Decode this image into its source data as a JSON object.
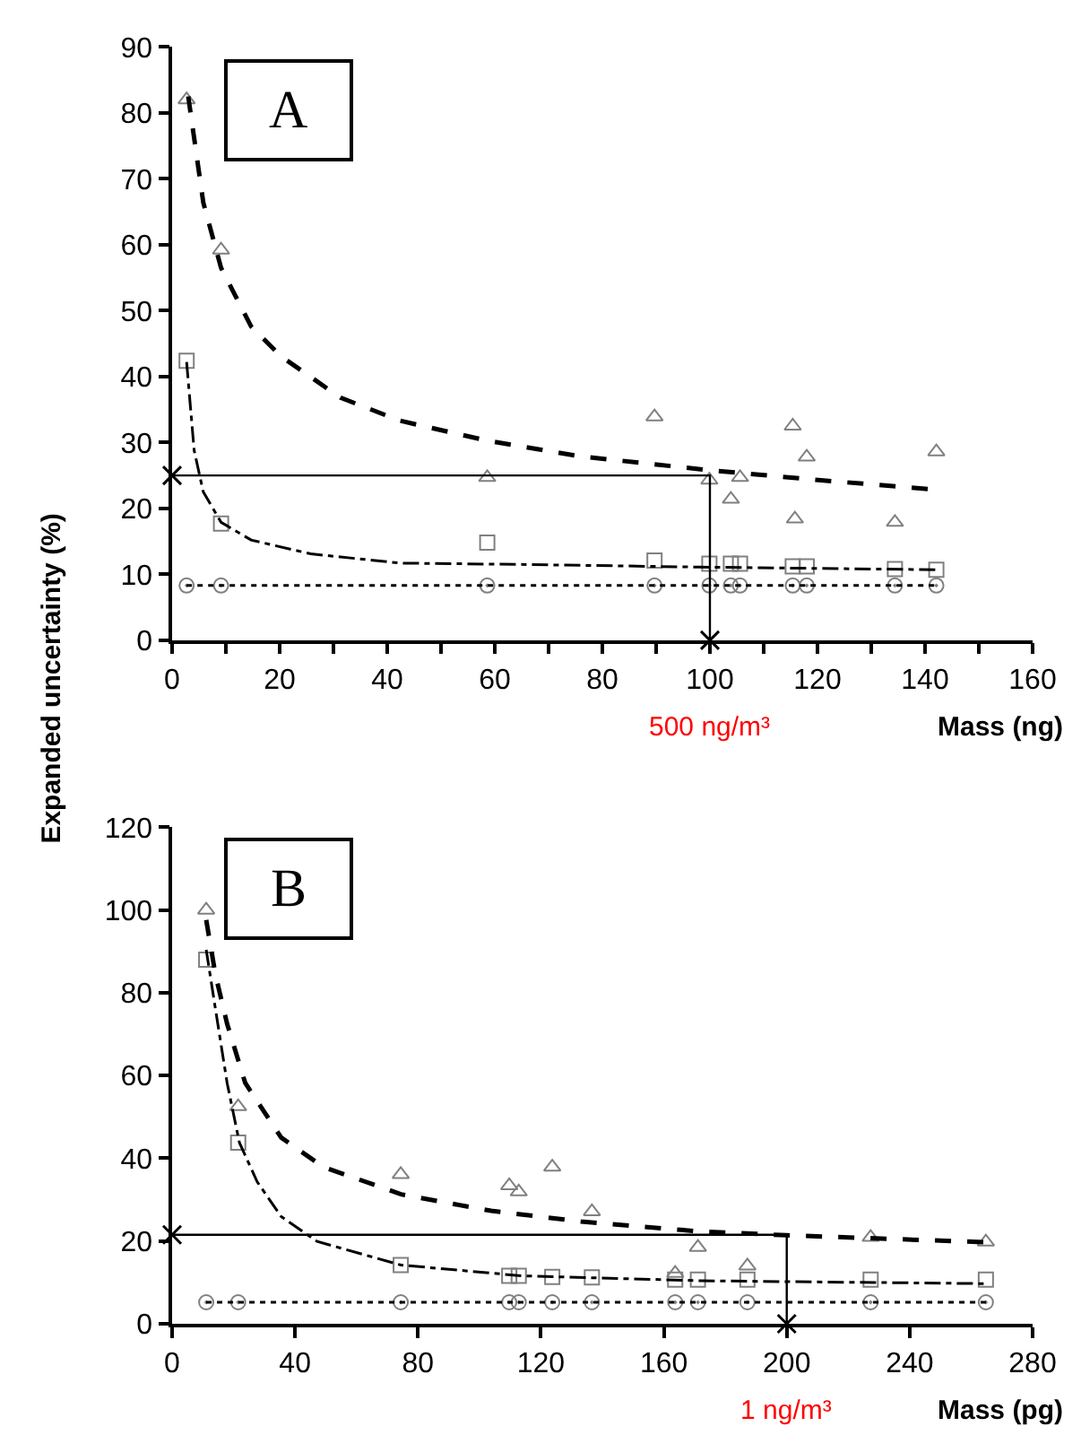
{
  "chart_data": [
    {
      "type": "scatter",
      "ylabel": "Expanded uncertainty (%)",
      "xlabel": "Mass (ng)",
      "xlim": [
        0,
        160
      ],
      "ylim": [
        0,
        90
      ],
      "xticks": [
        0,
        {
          "value": 10,
          "label": null
        },
        20,
        {
          "value": 30,
          "label": null
        },
        40,
        {
          "value": 50,
          "label": null
        },
        60,
        {
          "value": 70,
          "label": null
        },
        80,
        {
          "value": 90,
          "label": null
        },
        100,
        {
          "value": 110,
          "label": null
        },
        120,
        {
          "value": 130,
          "label": null
        },
        140,
        {
          "value": 150,
          "label": null
        },
        160
      ],
      "yticks": [
        0,
        10,
        20,
        30,
        40,
        50,
        60,
        70,
        80,
        90
      ],
      "annotations": [
        "A",
        {
          "text": "500 ng/m³",
          "x": 100,
          "y": 0
        }
      ],
      "series": [
        {
          "type": "scatter",
          "marker": "triangle",
          "color": "#808080",
          "x": [
            2.7,
            9.1,
            58.6,
            89.7,
            99.9,
            103.9,
            105.6,
            115.4,
            115.8,
            118,
            134.4,
            142.1
          ],
          "values": [
            82,
            59.2,
            24.7,
            33.9,
            24.3,
            21.4,
            24.7,
            32.5,
            18.4,
            27.8,
            17.9,
            28.6
          ]
        },
        {
          "type": "scatter",
          "marker": "square",
          "color": "#808080",
          "x": [
            2.7,
            9.1,
            58.6,
            89.7,
            99.9,
            103.9,
            105.6,
            115.4,
            118,
            134.4,
            142.1
          ],
          "values": [
            42.4,
            17.7,
            14.8,
            12.1,
            11.6,
            11.6,
            11.6,
            11.2,
            11.2,
            10.8,
            10.7
          ]
        },
        {
          "type": "scatter",
          "marker": "circle",
          "color": "#808080",
          "x": [
            2.7,
            9.1,
            58.6,
            89.7,
            99.9,
            103.9,
            105.6,
            115.4,
            118,
            134.4,
            142.1
          ],
          "values": [
            8.3,
            8.3,
            8.3,
            8.3,
            8.3,
            8.3,
            8.3,
            8.3,
            8.3,
            8.3,
            8.3
          ]
        },
        {
          "type": "line",
          "line_style": "dashed",
          "color": "#000000",
          "x": [
            3.0,
            5.8,
            9.1,
            14.7,
            20.2,
            31.3,
            42.4,
            58.5,
            75.8,
            99.9,
            120.2,
            141.3
          ],
          "values": [
            82.5,
            66.4,
            56.5,
            47.6,
            43.1,
            36.8,
            33.3,
            30.3,
            27.9,
            25.8,
            24.3,
            22.9
          ]
        },
        {
          "type": "line",
          "line_style": "dashdot",
          "color": "#000000",
          "x": [
            2.7,
            4.1,
            5.8,
            9.1,
            14.7,
            25.8,
            42.4,
            64.7,
            98,
            142.1
          ],
          "values": [
            42.2,
            28.8,
            22.5,
            17.9,
            15.2,
            13.1,
            11.7,
            11.5,
            11.1,
            10.7
          ]
        },
        {
          "type": "line",
          "line_style": "dotted",
          "color": "#000000",
          "x": [
            2.7,
            142.1
          ],
          "values": [
            8.3,
            8.3
          ]
        },
        {
          "type": "line",
          "line_style": "solid",
          "color": "#000000",
          "x": [
            0,
            100,
            100
          ],
          "values": [
            25,
            25,
            0
          ]
        },
        {
          "type": "scatter",
          "marker": "cross",
          "color": "#000000",
          "x": [
            0,
            100
          ],
          "values": [
            25,
            0
          ]
        }
      ]
    },
    {
      "type": "scatter",
      "xlabel": "Mass (pg)",
      "xlim": [
        0,
        280
      ],
      "ylim": [
        0,
        120
      ],
      "xticks": [
        0,
        40,
        80,
        120,
        160,
        200,
        240,
        280
      ],
      "yticks": [
        0,
        20,
        40,
        60,
        80,
        100,
        120
      ],
      "annotations": [
        "B",
        {
          "text": "1 ng/m³",
          "x": 200,
          "y": 0
        }
      ],
      "series": [
        {
          "type": "scatter",
          "marker": "triangle",
          "color": "#808080",
          "x": [
            11.1,
            21.5,
            74.4,
            109.7,
            112.8,
            123.7,
            136.6,
            163.7,
            171.1,
            187.2,
            227.3,
            264.8
          ],
          "values": [
            100,
            52.5,
            36.1,
            33.4,
            31.9,
            37.9,
            27.1,
            12.2,
            18.5,
            14.0,
            20.9,
            19.8
          ]
        },
        {
          "type": "scatter",
          "marker": "square",
          "color": "#808080",
          "x": [
            11.1,
            21.5,
            74.4,
            109.7,
            112.8,
            123.7,
            136.6,
            163.7,
            171.1,
            187.2,
            227.3,
            264.8
          ],
          "values": [
            88.0,
            43.8,
            14.2,
            11.6,
            11.6,
            11.3,
            11.2,
            10.7,
            10.7,
            10.7,
            10.7,
            10.7
          ]
        },
        {
          "type": "scatter",
          "marker": "circle",
          "color": "#808080",
          "x": [
            11.1,
            21.5,
            74.4,
            109.7,
            112.8,
            123.7,
            136.6,
            163.7,
            171.1,
            187.2,
            227.3,
            264.8
          ],
          "values": [
            5.2,
            5.2,
            5.2,
            5.2,
            5.2,
            5.2,
            5.2,
            5.2,
            5.2,
            5.2,
            5.2,
            5.2
          ]
        },
        {
          "type": "line",
          "line_style": "dashed",
          "color": "#000000",
          "x": [
            11.1,
            14.1,
            17.9,
            23.8,
            35.5,
            49.2,
            74.5,
            103.8,
            133.1,
            172.1,
            200,
            230.7,
            264.8
          ],
          "values": [
            97.6,
            84.4,
            72.5,
            58.2,
            45.0,
            37.9,
            31.3,
            27.3,
            24.7,
            22.3,
            21.4,
            20.6,
            19.7
          ]
        },
        {
          "type": "line",
          "line_style": "dashdot",
          "color": "#000000",
          "x": [
            11.1,
            14.1,
            17.9,
            21.9,
            27.7,
            35.5,
            47.2,
            74.5,
            113.6,
            172.1,
            264.8
          ],
          "values": [
            90.4,
            76.1,
            58.2,
            43.8,
            34.3,
            25.9,
            19.9,
            14.2,
            11.6,
            10.4,
            9.7
          ]
        },
        {
          "type": "line",
          "line_style": "dotted",
          "color": "#000000",
          "x": [
            11.1,
            264.8
          ],
          "values": [
            5.2,
            5.2
          ]
        },
        {
          "type": "line",
          "line_style": "solid",
          "color": "#000000",
          "x": [
            0,
            200,
            200
          ],
          "values": [
            21.5,
            21.5,
            0
          ]
        },
        {
          "type": "scatter",
          "marker": "cross",
          "color": "#000000",
          "x": [
            0,
            200
          ],
          "values": [
            21.5,
            0
          ]
        }
      ]
    }
  ]
}
